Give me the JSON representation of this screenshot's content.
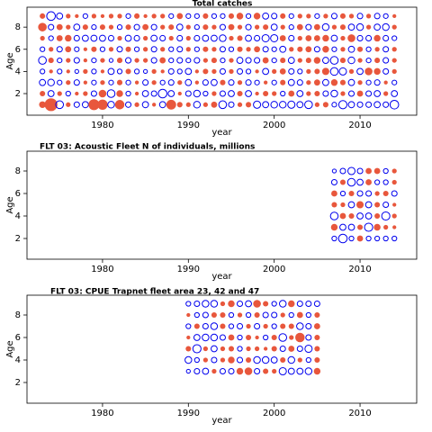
{
  "chart_data": [
    {
      "type": "bubble",
      "title": "Total catches",
      "xlabel": "year",
      "ylabel": "Age",
      "xlim": [
        1971.2,
        2016.6
      ],
      "ylim": [
        0.05,
        9.8
      ],
      "xticks": [
        1980,
        1990,
        2000,
        2010
      ],
      "yticks": [
        2,
        4,
        6,
        8
      ],
      "positive_color": "#e8573c",
      "negative_color": "#0000ee",
      "x": [
        1973,
        1974,
        1975,
        1976,
        1977,
        1978,
        1979,
        1980,
        1981,
        1982,
        1983,
        1984,
        1985,
        1986,
        1987,
        1988,
        1989,
        1990,
        1991,
        1992,
        1993,
        1994,
        1995,
        1996,
        1997,
        1998,
        1999,
        2000,
        2001,
        2002,
        2003,
        2004,
        2005,
        2006,
        2007,
        2008,
        2009,
        2010,
        2011,
        2012,
        2013,
        2014
      ],
      "y": [
        1,
        2,
        3,
        4,
        5,
        6,
        7,
        8,
        9
      ],
      "values": [
        [
          0.6,
          2.2,
          -0.8,
          0.3,
          -0.4,
          -0.5,
          1.6,
          1.4,
          -0.6,
          1.2,
          -0.4,
          0.3,
          -0.5,
          0.2,
          -0.5,
          1.3,
          0.4,
          0.3,
          -0.6,
          0.3,
          0.5,
          -0.8,
          -0.4,
          0.3,
          0.4,
          -0.7,
          -0.5,
          -0.6,
          -0.6,
          -0.7,
          -0.5,
          -0.8,
          0.3,
          0.4,
          -0.3,
          -0.9,
          -0.5,
          -0.4,
          -0.4,
          -0.5,
          -0.4,
          -1.0
        ],
        [
          0.4,
          -0.5,
          0.3,
          -0.3,
          0.2,
          0.3,
          -0.4,
          0.8,
          -0.8,
          0.6,
          -0.3,
          0.2,
          -0.5,
          -0.4,
          -1.0,
          -0.5,
          0.2,
          -0.4,
          -0.6,
          -0.3,
          0.3,
          -0.4,
          -0.5,
          0.4,
          -0.5,
          0.2,
          0.4,
          0.3,
          -0.3,
          0.5,
          -0.5,
          0.3,
          0.4,
          -0.4,
          -0.6,
          0.3,
          -0.4,
          0.5,
          -0.4,
          -0.5,
          0.3,
          -0.5
        ],
        [
          -0.5,
          -0.6,
          -0.3,
          0.3,
          -0.4,
          0.2,
          -0.3,
          0.3,
          -0.3,
          0.4,
          -0.3,
          0.2,
          -0.4,
          0.3,
          -0.3,
          -0.4,
          0.3,
          -0.5,
          0.2,
          -0.4,
          -0.5,
          0.4,
          -0.4,
          0.3,
          -0.4,
          -0.3,
          0.2,
          -0.3,
          0.4,
          -0.5,
          -0.4,
          0.3,
          0.5,
          -0.5,
          0.6,
          0.4,
          -0.5,
          0.3,
          -0.3,
          -0.4,
          0.2,
          -0.3
        ],
        [
          -0.3,
          0.2,
          -0.3,
          0.2,
          -0.2,
          0.3,
          -0.3,
          0.2,
          -0.5,
          -0.3,
          0.4,
          -0.3,
          -0.2,
          0.3,
          0.2,
          -0.4,
          -0.3,
          -0.5,
          0.2,
          0.4,
          0.3,
          -0.4,
          0.3,
          -0.4,
          -0.3,
          0.2,
          -0.5,
          0.3,
          0.5,
          -0.4,
          -0.3,
          0.3,
          0.4,
          0.7,
          -0.8,
          -0.7,
          0.3,
          -0.5,
          0.8,
          0.6,
          -0.4,
          0.3
        ],
        [
          -0.8,
          0.4,
          -0.3,
          0.3,
          -0.4,
          0.2,
          -0.3,
          0.3,
          -0.2,
          0.4,
          -0.4,
          0.3,
          0.3,
          -0.4,
          0.5,
          -0.3,
          -0.4,
          -0.3,
          -0.4,
          0.3,
          0.4,
          -0.3,
          0.3,
          -0.5,
          -0.4,
          -0.4,
          0.5,
          -0.3,
          0.4,
          -0.5,
          0.3,
          0.4,
          0.6,
          -0.5,
          -0.8,
          0.4,
          -0.6,
          0.3,
          -0.3,
          0.4,
          -0.4,
          0.3
        ],
        [
          -0.3,
          0.3,
          -0.4,
          0.5,
          -0.3,
          0.2,
          0.4,
          -0.3,
          0.3,
          -0.4,
          0.4,
          -0.3,
          0.3,
          -0.4,
          0.3,
          -0.3,
          -0.4,
          0.3,
          -0.3,
          0.4,
          0.3,
          -0.4,
          -0.3,
          0.4,
          0.3,
          0.5,
          -0.4,
          -0.3,
          -0.5,
          0.3,
          0.4,
          0.5,
          -0.4,
          0.6,
          -0.3,
          0.3,
          -0.5,
          0.4,
          -0.3,
          0.3,
          -0.4,
          0.3
        ],
        [
          0.3,
          -0.3,
          0.5,
          0.6,
          -0.4,
          -0.5,
          -0.5,
          -0.5,
          -0.4,
          0.3,
          -0.5,
          -0.4,
          0.3,
          -0.5,
          -0.4,
          0.3,
          -0.4,
          0.3,
          -0.4,
          -0.5,
          -0.5,
          -0.6,
          0.3,
          0.4,
          -0.5,
          -0.4,
          -0.7,
          -0.7,
          0.5,
          -0.4,
          0.3,
          0.5,
          0.5,
          0.6,
          -0.5,
          0.3,
          0.8,
          -0.4,
          -0.4,
          0.6,
          -0.4,
          -0.3
        ],
        [
          1.0,
          -0.4,
          0.5,
          0.3,
          -0.5,
          0.4,
          -0.3,
          0.4,
          0.3,
          -0.3,
          0.4,
          -0.4,
          0.5,
          -0.4,
          0.3,
          0.4,
          -0.5,
          0.3,
          -0.3,
          0.4,
          0.3,
          -0.4,
          0.5,
          0.3,
          -0.4,
          0.3,
          0.4,
          -0.5,
          0.3,
          -0.3,
          0.5,
          -0.4,
          0.5,
          -0.6,
          0.3,
          0.4,
          -0.5,
          -0.6,
          0.3,
          -0.5,
          -0.6,
          0.3
        ],
        [
          0.4,
          -1.0,
          -0.5,
          0.3,
          0.2,
          -0.3,
          0.3,
          0.2,
          0.3,
          0.3,
          -0.3,
          0.4,
          0.2,
          0.3,
          0.3,
          -0.3,
          0.5,
          -0.3,
          -0.3,
          0.4,
          -0.3,
          -0.3,
          0.4,
          0.6,
          -0.3,
          0.6,
          -0.5,
          -0.4,
          0.4,
          -0.3,
          0.3,
          0.3,
          -0.3,
          0.3,
          -0.4,
          0.4,
          0.3,
          -0.4,
          0.3,
          -0.4,
          -0.3,
          0.2
        ]
      ]
    },
    {
      "type": "bubble",
      "title": "FLT 03: Acoustic Fleet   N of individuals, millions",
      "xlabel": "year",
      "ylabel": "Age",
      "xlim": [
        1971.2,
        2016.6
      ],
      "ylim": [
        0.16,
        9.76
      ],
      "xticks": [
        1980,
        1990,
        2000,
        2010
      ],
      "yticks": [
        2,
        4,
        6,
        8
      ],
      "positive_color": "#e8573c",
      "negative_color": "#0000ee",
      "x": [
        2007,
        2008,
        2009,
        2010,
        2011,
        2012,
        2013,
        2014
      ],
      "y": [
        2,
        3,
        4,
        5,
        6,
        7,
        8
      ],
      "values": [
        [
          -0.3,
          -1.0,
          -0.3,
          0.5,
          -0.3,
          -0.3,
          -0.3,
          -0.3
        ],
        [
          0.6,
          -0.5,
          -0.5,
          0.4,
          -0.9,
          0.6,
          0.3,
          0.2
        ],
        [
          -0.8,
          0.5,
          0.4,
          -0.5,
          -0.5,
          0.4,
          -0.9,
          0.3
        ],
        [
          0.4,
          0.3,
          -0.5,
          0.7,
          -0.5,
          0.4,
          -0.4,
          0.2
        ],
        [
          0.5,
          -0.3,
          0.4,
          -0.4,
          -0.4,
          0.3,
          0.4,
          -0.4
        ],
        [
          -0.4,
          0.4,
          -0.8,
          -0.5,
          0.5,
          -0.3,
          -0.3,
          0.3
        ],
        [
          -0.2,
          -0.4,
          -0.7,
          -0.4,
          0.5,
          0.5,
          -0.3,
          0.3
        ]
      ]
    },
    {
      "type": "bubble",
      "title": "FLT 03: CPUE Trapnet fleet area 23, 42 and 47",
      "xlabel": "year",
      "ylabel": "Age",
      "xlim": [
        1971.2,
        2016.6
      ],
      "ylim": [
        0.16,
        9.76
      ],
      "xticks": [
        1980,
        1990,
        2000,
        2010
      ],
      "yticks": [
        2,
        4,
        6,
        8
      ],
      "positive_color": "#e8573c",
      "negative_color": "#0000ee",
      "x": [
        1990,
        1991,
        1992,
        1993,
        1994,
        1995,
        1996,
        1997,
        1998,
        1999,
        2000,
        2001,
        2002,
        2003,
        2004,
        2005
      ],
      "y": [
        3,
        4,
        5,
        6,
        7,
        8,
        9
      ],
      "values": [
        [
          -0.2,
          -0.4,
          -0.5,
          0.3,
          -0.4,
          -0.4,
          0.6,
          0.8,
          -0.4,
          0.4,
          0.3,
          -0.7,
          -0.5,
          -0.5,
          -0.6,
          0.6
        ],
        [
          -0.6,
          -0.3,
          0.3,
          -0.4,
          0.3,
          0.6,
          -0.4,
          0.4,
          -0.6,
          -0.6,
          -0.5,
          0.4,
          -0.6,
          0.3,
          -0.3,
          0.4
        ],
        [
          0.4,
          -0.9,
          0.3,
          -0.5,
          0.3,
          0.4,
          -0.3,
          0.3,
          0.3,
          0.2,
          0.4,
          -0.4,
          0.5,
          -0.4,
          -0.7,
          0.4
        ],
        [
          0.2,
          -0.5,
          -0.6,
          -0.6,
          -0.4,
          0.5,
          -0.3,
          0.4,
          0.2,
          -0.3,
          0.4,
          -0.8,
          0.3,
          1.2,
          -0.4,
          0.4
        ],
        [
          -0.3,
          0.4,
          -0.4,
          -0.6,
          0.4,
          -0.3,
          -0.4,
          0.3,
          -0.4,
          0.3,
          -0.3,
          0.4,
          0.4,
          -0.6,
          -0.4,
          0.5
        ],
        [
          0.2,
          -0.3,
          -0.4,
          0.4,
          0.4,
          -0.3,
          0.3,
          -0.3,
          0.4,
          -0.4,
          -0.4,
          0.3,
          -0.3,
          0.5,
          -0.3,
          0.4
        ],
        [
          -0.3,
          -0.4,
          -0.6,
          -0.6,
          0.3,
          0.6,
          -0.4,
          -0.5,
          0.8,
          0.4,
          -0.3,
          -0.6,
          0.6,
          -0.4,
          -0.4,
          -0.4
        ]
      ]
    }
  ]
}
